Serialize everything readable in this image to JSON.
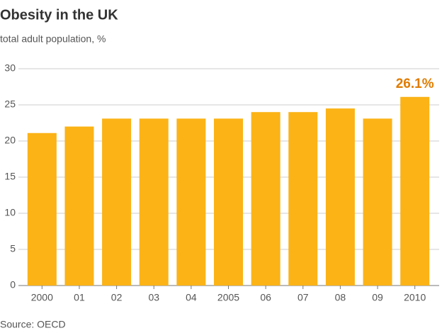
{
  "chart_data": {
    "type": "bar",
    "title": "Obesity in the UK",
    "subtitle": "total adult population, %",
    "categories": [
      "2000",
      "01",
      "02",
      "03",
      "04",
      "2005",
      "06",
      "07",
      "08",
      "09",
      "2010"
    ],
    "values": [
      21.1,
      22,
      23.1,
      23.1,
      23.1,
      23.1,
      24,
      24,
      24.5,
      23.1,
      26.1
    ],
    "value_labels": [
      null,
      null,
      null,
      null,
      null,
      null,
      null,
      null,
      null,
      null,
      "26.1%"
    ],
    "color": "#fbb316",
    "label_color": "#e07c00",
    "ylim": [
      0,
      30
    ],
    "yticks": [
      0,
      5,
      10,
      15,
      20,
      25,
      30
    ],
    "grid": true,
    "source": "Source: OECD"
  }
}
